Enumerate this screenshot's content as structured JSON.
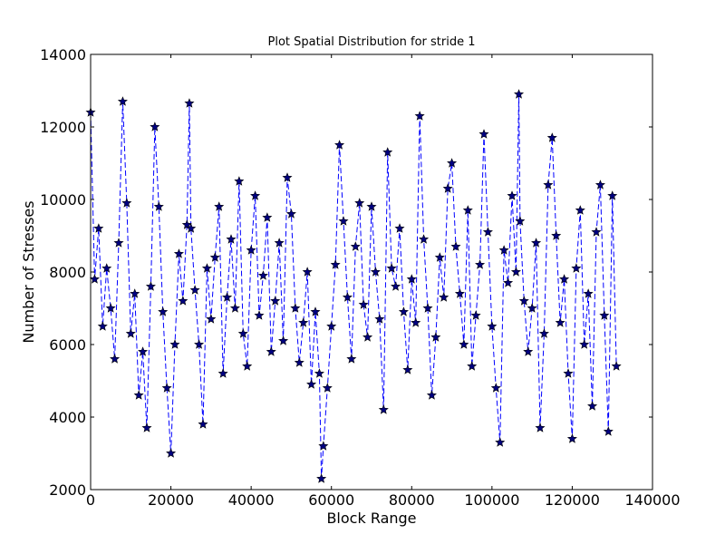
{
  "chart_data": {
    "type": "line",
    "title": "Plot Spatial Distribution for stride 1",
    "xlabel": "Block Range",
    "ylabel": "Number of Stresses",
    "xlim": [
      0,
      140000
    ],
    "ylim": [
      2000,
      14000
    ],
    "xticks": [
      0,
      20000,
      40000,
      60000,
      80000,
      100000,
      120000,
      140000
    ],
    "yticks": [
      2000,
      4000,
      6000,
      8000,
      10000,
      12000,
      14000
    ],
    "xtick_labels": [
      "0",
      "20000",
      "40000",
      "60000",
      "80000",
      "100000",
      "120000",
      "140000"
    ],
    "ytick_labels": [
      "2000",
      "4000",
      "6000",
      "8000",
      "10000",
      "12000",
      "14000"
    ],
    "grid": false,
    "series": [
      {
        "color": "#0000ff",
        "marker": "star",
        "marker_color": "#000080",
        "linestyle": "dashed",
        "x": [
          0,
          1000,
          2000,
          3000,
          4000,
          5000,
          6000,
          7000,
          8000,
          9000,
          10000,
          11000,
          12000,
          13000,
          14000,
          15000,
          16000,
          17000,
          18000,
          19000,
          20000,
          21000,
          22000,
          23000,
          24000,
          24600,
          25000,
          26000,
          27000,
          28000,
          29000,
          30000,
          31000,
          32000,
          33000,
          34000,
          35000,
          36000,
          37000,
          38000,
          39000,
          40000,
          41000,
          42000,
          43000,
          44000,
          45000,
          46000,
          47000,
          48000,
          49000,
          50000,
          51000,
          52000,
          53000,
          54000,
          55000,
          56000,
          57000,
          57500,
          58000,
          59000,
          60000,
          61000,
          62000,
          63000,
          64000,
          65000,
          66000,
          67000,
          68000,
          69000,
          70000,
          71000,
          72000,
          73000,
          74000,
          75000,
          76000,
          77000,
          78000,
          79000,
          80000,
          81000,
          82000,
          83000,
          84000,
          85000,
          86000,
          87000,
          88000,
          89000,
          90000,
          91000,
          92000,
          93000,
          94000,
          95000,
          96000,
          97000,
          98000,
          99000,
          100000,
          101000,
          102000,
          103000,
          104000,
          105000,
          106000,
          106700,
          107000,
          108000,
          109000,
          110000,
          111000,
          112000,
          113000,
          114000,
          115000,
          116000,
          117000,
          118000,
          119000,
          120000,
          121000,
          122000,
          123000,
          124000,
          125000,
          126000,
          127000,
          128000,
          129000,
          130000,
          131000
        ],
        "y": [
          12400,
          7800,
          9200,
          6500,
          8100,
          7000,
          5600,
          8800,
          12700,
          9900,
          6300,
          7400,
          4600,
          5800,
          3700,
          7600,
          12000,
          9800,
          6900,
          4800,
          3000,
          6000,
          8500,
          7200,
          9300,
          12650,
          9200,
          7500,
          6000,
          3800,
          8100,
          6700,
          8400,
          9800,
          5200,
          7300,
          8900,
          7000,
          10500,
          6300,
          5400,
          8600,
          10100,
          6800,
          7900,
          9500,
          5800,
          7200,
          8800,
          6100,
          10600,
          9600,
          7000,
          5500,
          6600,
          8000,
          4900,
          6900,
          5200,
          2300,
          3200,
          4800,
          6500,
          8200,
          11500,
          9400,
          7300,
          5600,
          8700,
          9900,
          7100,
          6200,
          9800,
          8000,
          6700,
          4200,
          11300,
          8100,
          7600,
          9200,
          6900,
          5300,
          7800,
          6600,
          12300,
          8900,
          7000,
          4600,
          6200,
          8400,
          7300,
          10300,
          11000,
          8700,
          7400,
          6000,
          9700,
          5400,
          6800,
          8200,
          11800,
          9100,
          6500,
          4800,
          3300,
          8600,
          7700,
          10100,
          8000,
          12900,
          9400,
          7200,
          5800,
          7000,
          8800,
          3700,
          6300,
          10400,
          11700,
          9000,
          6600,
          7800,
          5200,
          3400,
          8100,
          9700,
          6000,
          7400,
          4300,
          9100,
          10400,
          6800,
          3600,
          10100,
          5400
        ]
      }
    ]
  }
}
